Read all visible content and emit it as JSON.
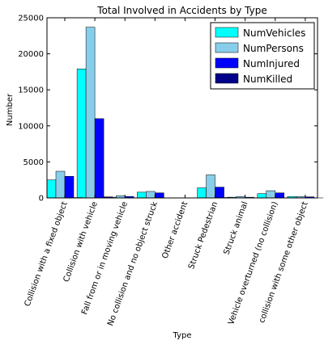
{
  "chart_data": {
    "type": "bar",
    "title": "Total Involved in Accidents by Type",
    "xlabel": "Type",
    "ylabel": "Number",
    "ylim": [
      0,
      25000
    ],
    "yticks": [
      0,
      5000,
      10000,
      15000,
      20000,
      25000
    ],
    "categories": [
      "Collision with a fixed object",
      "Collision with vehicle",
      "Fall from or in moving vehicle",
      "No collision and no object struck",
      "Other accident",
      "Struck Pedestrian",
      "Struck animal",
      "Vehicle overturned (no collision)",
      "collision with some other object"
    ],
    "series": [
      {
        "name": "NumVehicles",
        "color": "#00ffff",
        "values": [
          2500,
          17900,
          100,
          800,
          0,
          1400,
          100,
          600,
          200
        ]
      },
      {
        "name": "NumPersons",
        "color": "#87ceeb",
        "values": [
          3700,
          23700,
          300,
          900,
          10,
          3200,
          200,
          1000,
          200
        ]
      },
      {
        "name": "NumInjured",
        "color": "#0000ff",
        "values": [
          3000,
          11000,
          200,
          700,
          5,
          1500,
          100,
          700,
          150
        ]
      },
      {
        "name": "NumKilled",
        "color": "#00008b",
        "values": [
          50,
          150,
          5,
          10,
          0,
          60,
          2,
          20,
          5
        ]
      }
    ],
    "legend_position": "top-right",
    "grid": false
  }
}
